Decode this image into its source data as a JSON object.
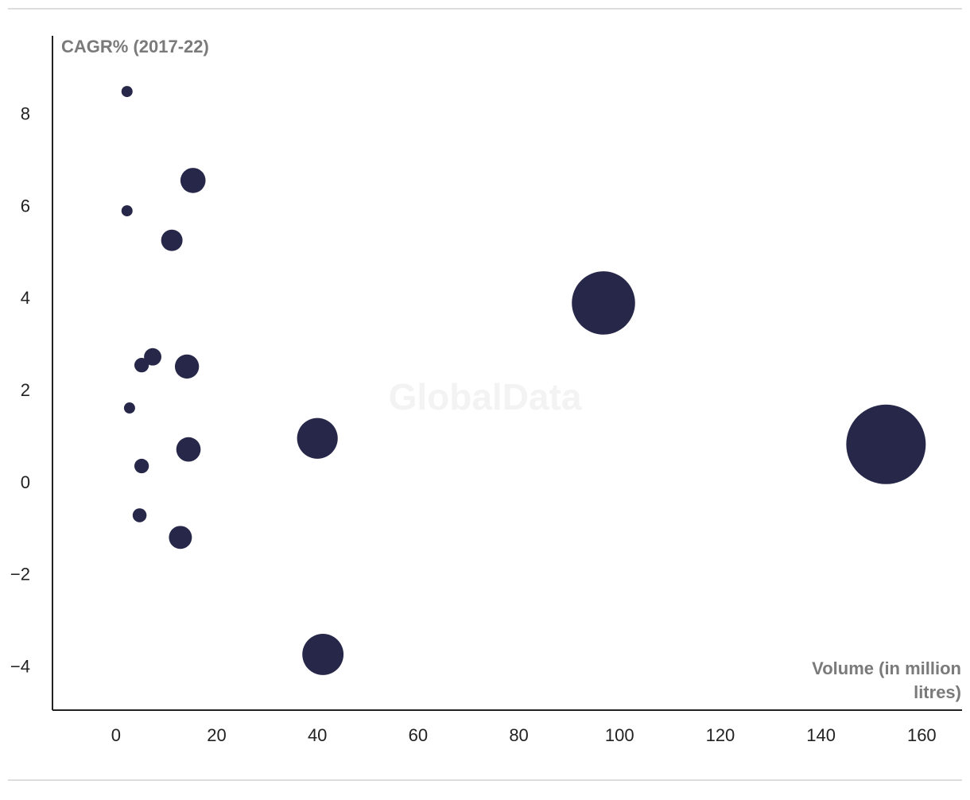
{
  "chart_data": {
    "type": "bubble",
    "y_label": "CAGR% (2017-22)",
    "x_label": "Volume (in million litres)",
    "watermark": "GlobalData",
    "color": "#272849",
    "x": [
      2.2,
      15.3,
      2.2,
      11.1,
      96.8,
      7.3,
      5.1,
      14.1,
      2.7,
      40.0,
      152.9,
      14.4,
      5.1,
      4.7,
      12.8,
      41.1
    ],
    "values": [
      8.51,
      6.58,
      5.92,
      5.28,
      3.92,
      2.75,
      2.57,
      2.54,
      1.64,
      0.98,
      0.85,
      0.74,
      0.38,
      -0.69,
      -1.17,
      -3.71
    ],
    "xlim": [
      -12.6,
      168
    ],
    "ylim": [
      -4.92,
      9.72
    ],
    "xticks": [
      0,
      20,
      40,
      60,
      80,
      100,
      120,
      140,
      160
    ],
    "yticks": [
      {
        "value": -4,
        "label": "−4"
      },
      {
        "value": -2,
        "label": "−2"
      },
      0,
      2,
      4,
      6,
      8
    ]
  }
}
